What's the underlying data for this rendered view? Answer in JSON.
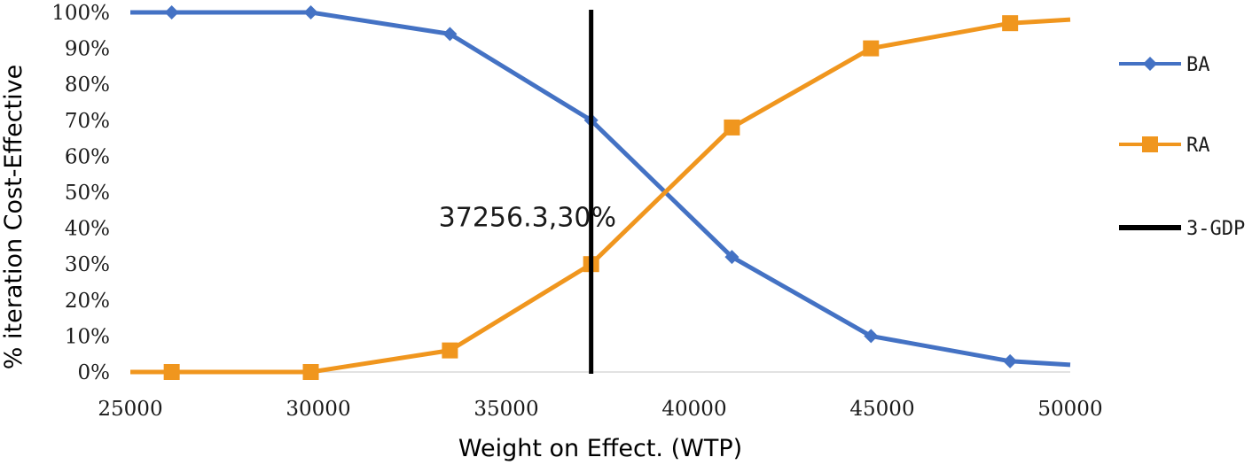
{
  "chart_data": {
    "type": "line",
    "title": "",
    "xlabel": "Weight on Effect. (WTP)",
    "ylabel": "% iteration Cost-Effective",
    "xlim": [
      25000,
      50000
    ],
    "ylim": [
      0,
      100
    ],
    "x_ticks": [
      "25000",
      "30000",
      "35000",
      "40000",
      "45000",
      "50000"
    ],
    "y_ticks": [
      "0%",
      "10%",
      "20%",
      "30%",
      "40%",
      "50%",
      "60%",
      "70%",
      "80%",
      "90%",
      "100%"
    ],
    "series": [
      {
        "name": "BA",
        "color": "#4472C4",
        "marker": "diamond",
        "points": [
          [
            25000,
            100
          ],
          [
            26100,
            100
          ],
          [
            29800,
            100
          ],
          [
            33500,
            94
          ],
          [
            37256.3,
            70
          ],
          [
            41000,
            32
          ],
          [
            44700,
            10
          ],
          [
            48400,
            3
          ],
          [
            50000,
            2
          ]
        ],
        "marked": [
          false,
          true,
          true,
          true,
          true,
          true,
          true,
          true,
          false
        ]
      },
      {
        "name": "RA",
        "color": "#F0961E",
        "marker": "square",
        "points": [
          [
            25000,
            0
          ],
          [
            26100,
            0
          ],
          [
            29800,
            0
          ],
          [
            33500,
            6
          ],
          [
            37256.3,
            30
          ],
          [
            41000,
            68
          ],
          [
            44700,
            90
          ],
          [
            48400,
            97
          ],
          [
            50000,
            98
          ]
        ],
        "marked": [
          false,
          true,
          true,
          true,
          true,
          true,
          true,
          true,
          false
        ]
      }
    ],
    "reference_line": {
      "name": "3-GDP",
      "x": 37256.3,
      "color": "#000000"
    },
    "annotation": {
      "text": "37256.3,30%",
      "x": 33200,
      "y": 43
    },
    "legend": [
      "BA",
      "RA",
      "3-GDP"
    ],
    "legend_position": "right"
  }
}
